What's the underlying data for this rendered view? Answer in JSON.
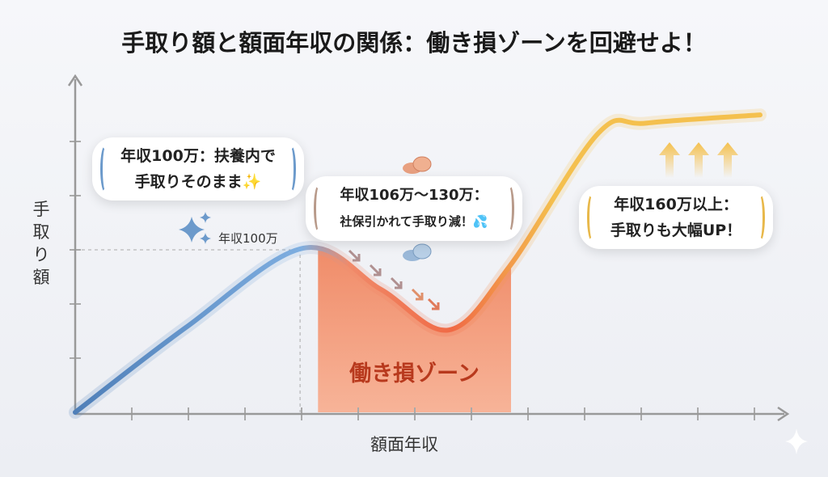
{
  "title": "手取り額と額面年収の関係：働き損ゾーンを回避せよ！",
  "colors": {
    "blue": "#5b8fc9",
    "orange": "#f07a50",
    "yellow": "#f4c04e",
    "zone": "#f49a7a"
  },
  "chart_data": {
    "type": "line",
    "title": "手取り額と額面年収の関係：働き損ゾーンを回避せよ！",
    "xlabel": "額面年収",
    "ylabel": "手取り額",
    "xlim": [
      0,
      12.6
    ],
    "ylim": [
      0,
      6.2
    ],
    "grid": false,
    "x_ticks": [
      1,
      2,
      3,
      4,
      5,
      6,
      7,
      8,
      9,
      10,
      11,
      12
    ],
    "y_ticks": [
      1,
      2,
      3,
      4,
      5
    ],
    "series": [
      {
        "name": "手取り額",
        "x": [
          0,
          1.96,
          4.03,
          5.4,
          6.6,
          7.67,
          9.24,
          10.1,
          12.1
        ],
        "y": [
          0,
          1.57,
          3.03,
          2.27,
          1.52,
          2.69,
          5.15,
          5.34,
          5.49
        ]
      }
    ],
    "zone": {
      "label": "働き損ゾーン",
      "x": [
        4.29,
        7.7
      ]
    },
    "peak_marker": {
      "label": "年収100万",
      "x": 4.03,
      "y": 3.03
    },
    "annotations": [
      {
        "line1": "年収100万：扶養内で",
        "line2": "手取りそのまま✨"
      },
      {
        "line1": "年収106万〜130万：",
        "line2": "社保引かれて手取り減！💦"
      },
      {
        "line1": "年収160万以上：",
        "line2": "手取りも大幅UP！"
      }
    ]
  }
}
